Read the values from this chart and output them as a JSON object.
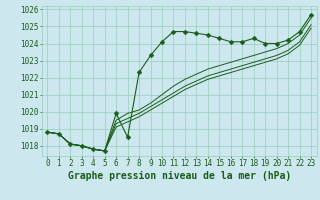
{
  "title": "Graphe pression niveau de la mer (hPa)",
  "bg_color": "#cce8ee",
  "grid_color": "#99ccbb",
  "line_color": "#1a5c1a",
  "x_labels": [
    "0",
    "1",
    "2",
    "3",
    "4",
    "5",
    "6",
    "7",
    "8",
    "9",
    "10",
    "11",
    "12",
    "13",
    "14",
    "15",
    "16",
    "17",
    "18",
    "19",
    "20",
    "21",
    "22",
    "23"
  ],
  "ylim": [
    1017.4,
    1026.2
  ],
  "yticks": [
    1018,
    1019,
    1020,
    1021,
    1022,
    1023,
    1024,
    1025,
    1026
  ],
  "series": [
    [
      1018.8,
      1018.7,
      1018.1,
      1018.0,
      1017.8,
      1017.7,
      1019.9,
      1018.5,
      1022.3,
      1023.3,
      1024.1,
      1024.7,
      1024.7,
      1024.6,
      1024.5,
      1024.3,
      1024.1,
      1024.1,
      1024.3,
      1024.0,
      1024.0,
      1024.2,
      1024.7,
      1025.7
    ],
    [
      1018.8,
      1018.7,
      1018.1,
      1018.0,
      1017.8,
      1017.7,
      1019.5,
      1019.9,
      1020.1,
      1020.5,
      1021.0,
      1021.5,
      1021.9,
      1022.2,
      1022.5,
      1022.7,
      1022.9,
      1023.1,
      1023.3,
      1023.5,
      1023.7,
      1024.0,
      1024.5,
      1025.5
    ],
    [
      1018.8,
      1018.7,
      1018.1,
      1018.0,
      1017.8,
      1017.7,
      1019.3,
      1019.6,
      1019.9,
      1020.3,
      1020.7,
      1021.1,
      1021.5,
      1021.8,
      1022.1,
      1022.3,
      1022.5,
      1022.7,
      1022.9,
      1023.1,
      1023.3,
      1023.6,
      1024.1,
      1025.1
    ],
    [
      1018.8,
      1018.7,
      1018.1,
      1018.0,
      1017.8,
      1017.7,
      1019.1,
      1019.4,
      1019.7,
      1020.1,
      1020.5,
      1020.9,
      1021.3,
      1021.6,
      1021.9,
      1022.1,
      1022.3,
      1022.5,
      1022.7,
      1022.9,
      1023.1,
      1023.4,
      1023.9,
      1024.9
    ]
  ],
  "marker_size": 2.5,
  "title_fontsize": 7,
  "tick_fontsize": 5.5
}
